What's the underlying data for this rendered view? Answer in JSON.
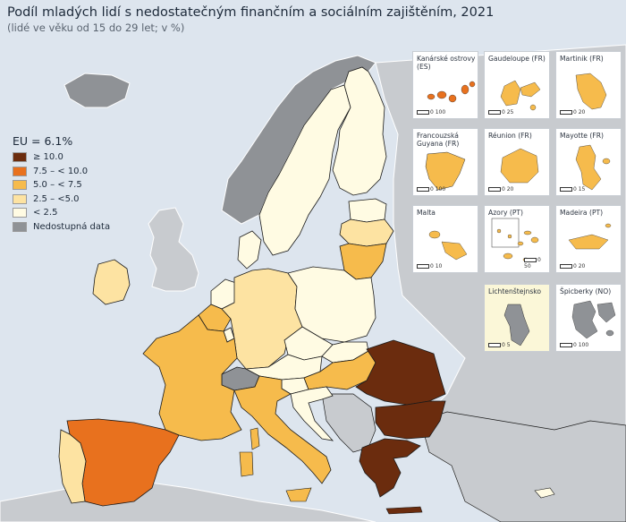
{
  "title": "Podíl mladých lidí s nedostatečným finančním a sociálním zajištěním, 2021",
  "subtitle": "(lidé ve věku od 15 do 29 let; v %)",
  "colors": {
    "sea": "#dde5ee",
    "non_eu": "#c8cbcf",
    "no_data": "#8f9296",
    "border": "#1a1a1a",
    "class_ge10": "#6b2c0e",
    "class_7_5_10": "#e8711e",
    "class_5_7_5": "#f6bb4c",
    "class_2_5_5": "#fde3a2",
    "class_lt2_5": "#fffbe3"
  },
  "legend": {
    "title": "EU = 6.1%",
    "items": [
      {
        "label": "≥ 10.0",
        "color": "#6b2c0e"
      },
      {
        "label": "7.5 – < 10.0",
        "color": "#e8711e"
      },
      {
        "label": "5.0 – < 7.5",
        "color": "#f6bb4c"
      },
      {
        "label": "2.5 – <5.0",
        "color": "#fde3a2"
      },
      {
        "label": "< 2.5",
        "color": "#fffbe3"
      },
      {
        "label": "Nedostupná data",
        "color": "#8f9296"
      }
    ]
  },
  "insets": [
    {
      "label": "Kanárské ostrovy (ES)",
      "scale": "0   100",
      "color": "#e8711e"
    },
    {
      "label": "Gaudeloupe (FR)",
      "scale": "0  25",
      "color": "#f6bb4c"
    },
    {
      "label": "Martinik (FR)",
      "scale": "0  20",
      "color": "#f6bb4c"
    },
    {
      "label": "Francouzská Guyana (FR)",
      "scale": "0  100",
      "color": "#f6bb4c"
    },
    {
      "label": "Réunion (FR)",
      "scale": "0  20",
      "color": "#f6bb4c"
    },
    {
      "label": "Mayotte (FR)",
      "scale": "0  15",
      "color": "#f6bb4c"
    },
    {
      "label": "Malta",
      "scale": "0  10",
      "color": "#f6bb4c"
    },
    {
      "label": "Azory (PT)",
      "scale": "0  50",
      "color": "#f6bb4c"
    },
    {
      "label": "Madeira (PT)",
      "scale": "0  20",
      "color": "#f6bb4c"
    },
    {
      "label": "Lichtenštejnsko",
      "scale": "0  5",
      "color": "#8f9296"
    },
    {
      "label": "Špicberky (NO)",
      "scale": "0  100",
      "color": "#8f9296"
    }
  ],
  "regions": [
    {
      "name": "Iceland",
      "class": "no_data"
    },
    {
      "name": "Norway",
      "class": "no_data"
    },
    {
      "name": "Sweden",
      "class": "lt2_5"
    },
    {
      "name": "Finland",
      "class": "lt2_5"
    },
    {
      "name": "Estonia",
      "class": "lt2_5"
    },
    {
      "name": "Latvia",
      "class": "2_5_5"
    },
    {
      "name": "Lithuania",
      "class": "5_7_5"
    },
    {
      "name": "Denmark",
      "class": "lt2_5"
    },
    {
      "name": "Ireland",
      "class": "2_5_5"
    },
    {
      "name": "Netherlands",
      "class": "lt2_5"
    },
    {
      "name": "Belgium",
      "class": "5_7_5"
    },
    {
      "name": "Luxembourg",
      "class": "lt2_5"
    },
    {
      "name": "Germany",
      "class": "2_5_5"
    },
    {
      "name": "Poland",
      "class": "lt2_5"
    },
    {
      "name": "Czechia",
      "class": "lt2_5"
    },
    {
      "name": "Slovakia",
      "class": "lt2_5"
    },
    {
      "name": "Austria",
      "class": "lt2_5"
    },
    {
      "name": "Slovenia",
      "class": "lt2_5"
    },
    {
      "name": "Hungary",
      "class": "5_7_5"
    },
    {
      "name": "Croatia",
      "class": "lt2_5"
    },
    {
      "name": "France",
      "class": "5_7_5"
    },
    {
      "name": "Spain",
      "class": "7_5_10"
    },
    {
      "name": "Portugal",
      "class": "2_5_5"
    },
    {
      "name": "Italy",
      "class": "5_7_5"
    },
    {
      "name": "Romania",
      "class": "ge10"
    },
    {
      "name": "Bulgaria",
      "class": "ge10"
    },
    {
      "name": "Greece",
      "class": "ge10"
    },
    {
      "name": "Cyprus",
      "class": "lt2_5"
    },
    {
      "name": "Switzerland",
      "class": "no_data"
    },
    {
      "name": "Serbia",
      "class": "no_data"
    },
    {
      "name": "North Macedonia",
      "class": "no_data"
    },
    {
      "name": "Montenegro",
      "class": "no_data"
    },
    {
      "name": "Albania",
      "class": "no_data"
    },
    {
      "name": "Turkey",
      "class": "no_data"
    },
    {
      "name": "Svalbard",
      "class": "no_data"
    }
  ]
}
